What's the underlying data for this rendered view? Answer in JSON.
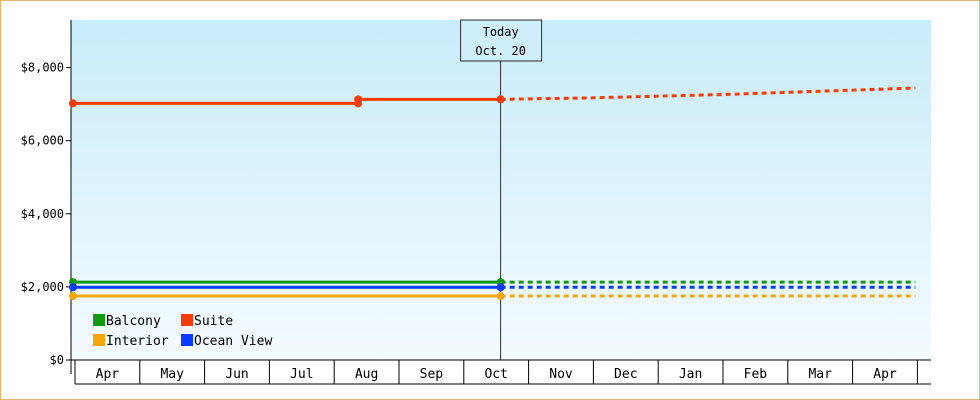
{
  "chart_data": {
    "type": "line",
    "title": "",
    "xlabel": "",
    "ylabel": "",
    "ylim": [
      0,
      9300
    ],
    "y_ticks": [
      0,
      2000,
      4000,
      6000,
      8000
    ],
    "y_tick_labels": [
      "$0",
      "$2,000",
      "$4,000",
      "$6,000",
      "$8,000"
    ],
    "month_labels": [
      "Apr",
      "May",
      "Jun",
      "Jul",
      "Aug",
      "Sep",
      "Oct",
      "Nov",
      "Dec",
      "Jan",
      "Feb",
      "Mar",
      "Apr"
    ],
    "today_marker": {
      "line1": "Today",
      "line2": "Oct. 20",
      "at_month_index": 6.6
    },
    "grid": false,
    "legend_position": "bottom-left",
    "series": [
      {
        "name": "Balcony",
        "color": "#119a11",
        "actual": [
          [
            0,
            2130
          ],
          [
            6.6,
            2130
          ]
        ],
        "projected": [
          [
            6.6,
            2130
          ],
          [
            13.0,
            2130
          ]
        ],
        "markers": [
          0,
          6.6
        ]
      },
      {
        "name": "Suite",
        "color": "#ff3c00",
        "actual": [
          [
            0,
            7020
          ],
          [
            4.4,
            7020
          ],
          [
            4.4,
            7130
          ],
          [
            6.6,
            7130
          ]
        ],
        "projected": [
          [
            6.6,
            7130
          ],
          [
            8.0,
            7170
          ],
          [
            10.0,
            7260
          ],
          [
            13.0,
            7440
          ]
        ],
        "markers": [
          0,
          4.4,
          6.6
        ]
      },
      {
        "name": "Interior",
        "color": "#f4a60c",
        "actual": [
          [
            0,
            1750
          ],
          [
            6.6,
            1750
          ]
        ],
        "projected": [
          [
            6.6,
            1750
          ],
          [
            13.0,
            1750
          ]
        ],
        "markers": [
          0,
          4.4,
          6.6
        ]
      },
      {
        "name": "Ocean View",
        "color": "#0a3cff",
        "actual": [
          [
            0,
            1990
          ],
          [
            6.6,
            1990
          ]
        ],
        "projected": [
          [
            6.6,
            1990
          ],
          [
            13.0,
            1990
          ]
        ],
        "markers": [
          0,
          4.4,
          6.6
        ]
      }
    ]
  }
}
